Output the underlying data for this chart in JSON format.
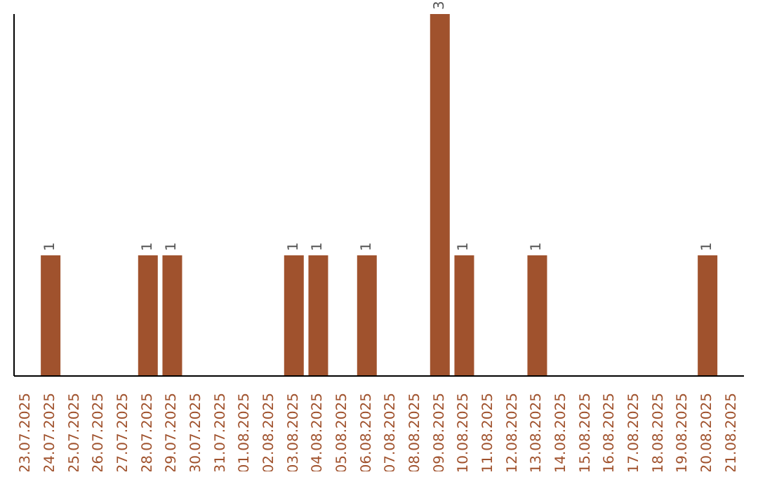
{
  "chart_data": {
    "type": "bar",
    "categories": [
      "23.07.2025",
      "24.07.2025",
      "25.07.2025",
      "26.07.2025",
      "27.07.2025",
      "28.07.2025",
      "29.07.2025",
      "30.07.2025",
      "31.07.2025",
      "01.08.2025",
      "02.08.2025",
      "03.08.2025",
      "04.08.2025",
      "05.08.2025",
      "06.08.2025",
      "07.08.2025",
      "08.08.2025",
      "09.08.2025",
      "10.08.2025",
      "11.08.2025",
      "12.08.2025",
      "13.08.2025",
      "14.08.2025",
      "15.08.2025",
      "16.08.2025",
      "17.08.2025",
      "18.08.2025",
      "19.08.2025",
      "20.08.2025",
      "21.08.2025"
    ],
    "values": [
      0,
      1,
      0,
      0,
      0,
      1,
      1,
      0,
      0,
      0,
      0,
      1,
      1,
      0,
      1,
      0,
      0,
      3,
      1,
      0,
      0,
      1,
      0,
      0,
      0,
      0,
      0,
      0,
      1,
      0
    ],
    "value_labels": [
      null,
      "1",
      null,
      null,
      null,
      "1",
      "1",
      null,
      null,
      null,
      null,
      "1",
      "1",
      null,
      "1",
      null,
      null,
      "3",
      "1",
      null,
      null,
      "1",
      null,
      null,
      null,
      null,
      null,
      null,
      "1",
      null
    ],
    "color": "#a0522d"
  }
}
